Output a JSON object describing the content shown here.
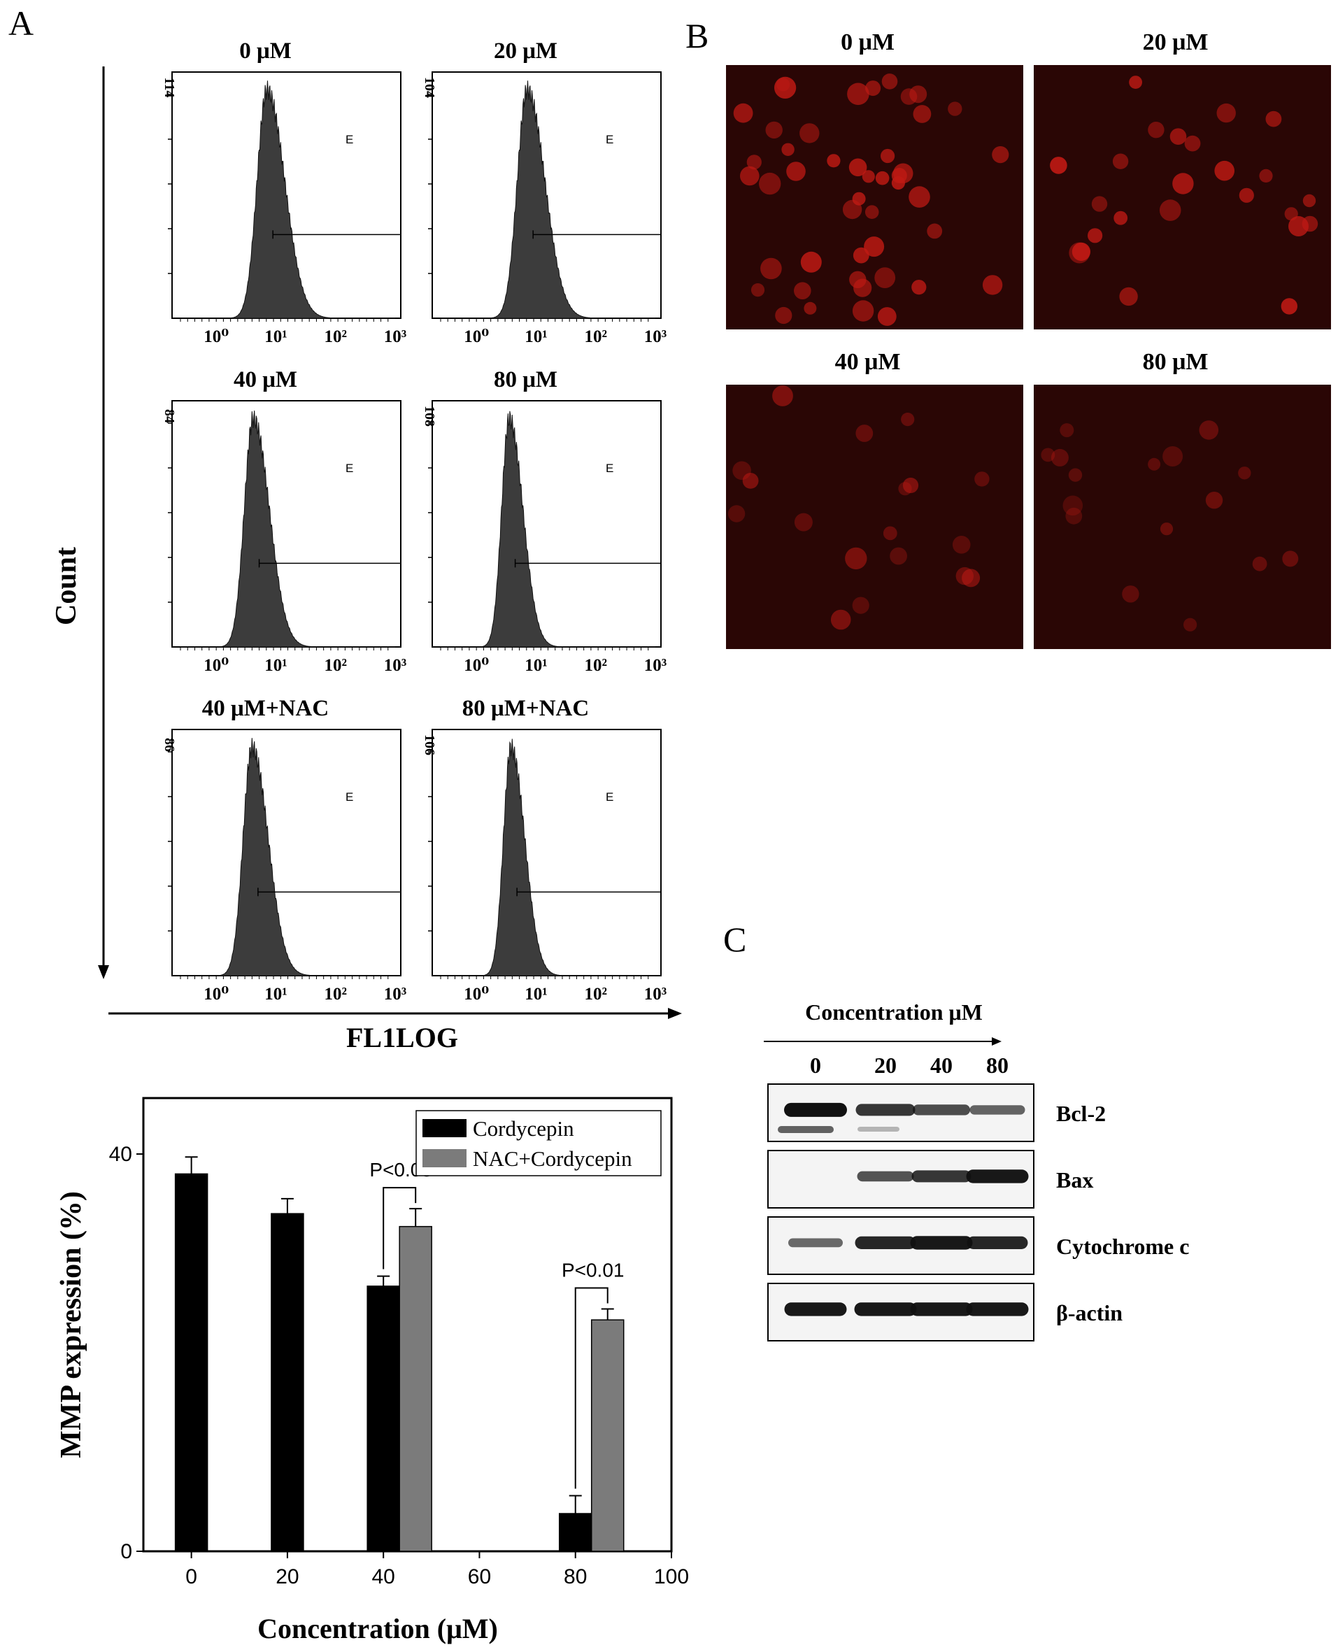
{
  "panels": {
    "A": "A",
    "B": "B",
    "C": "C"
  },
  "flow": {
    "y_axis_label": "Count",
    "x_axis_label": "FL1LOG",
    "gate_label": "E",
    "tick_labels": [
      "10⁰",
      "10¹",
      "10²",
      "10³"
    ],
    "plots": [
      {
        "title": "0 μM",
        "ymax_label": "114",
        "peak_decade": 0.85,
        "width": 0.22,
        "gate_level": 0.5
      },
      {
        "title": "20 μM",
        "ymax_label": "104",
        "peak_decade": 0.85,
        "width": 0.22,
        "gate_level": 0.5
      },
      {
        "title": "40 μM",
        "ymax_label": "84",
        "peak_decade": 0.62,
        "width": 0.2,
        "gate_level": 0.5
      },
      {
        "title": "80 μM",
        "ymax_label": "108",
        "peak_decade": 0.55,
        "width": 0.17,
        "gate_level": 0.5
      },
      {
        "title": "40 μM+NAC",
        "ymax_label": "86",
        "peak_decade": 0.6,
        "width": 0.2,
        "gate_level": 0.5
      },
      {
        "title": "80 μM+NAC",
        "ymax_label": "106",
        "peak_decade": 0.58,
        "width": 0.17,
        "gate_level": 0.5
      }
    ]
  },
  "micrographs": {
    "labels": [
      "0 μM",
      "20 μM",
      "40 μM",
      "80 μM"
    ],
    "background": "#2a0605",
    "cell_color": "#c01a14",
    "cell_counts": [
      46,
      24,
      18,
      16
    ]
  },
  "western": {
    "axis_label": "Concentration μM",
    "lanes": [
      "0",
      "20",
      "40",
      "80"
    ],
    "blots": [
      {
        "name": "Bcl-2",
        "intensities": [
          1.0,
          0.75,
          0.6,
          0.45
        ]
      },
      {
        "name": "Bax",
        "intensities": [
          0.0,
          0.55,
          0.75,
          0.95
        ]
      },
      {
        "name": "Cytochrome c",
        "intensities": [
          0.4,
          0.85,
          0.95,
          0.85
        ]
      },
      {
        "name": "β-actin",
        "intensities": [
          0.95,
          0.95,
          0.95,
          0.95
        ]
      }
    ]
  },
  "chart_data": {
    "type": "bar",
    "ylabel": "MMP expression (%)",
    "xlabel": "Concentration (μM)",
    "xlim": [
      -10,
      100
    ],
    "ylim": [
      0,
      40
    ],
    "xticks": [
      0,
      20,
      40,
      60,
      80,
      100
    ],
    "yticks": [
      0,
      40
    ],
    "legend_position": "top-right",
    "series": [
      {
        "name": "Cordycepin",
        "color": "#000000",
        "points": [
          {
            "x": 0,
            "y": 38,
            "err": 1.7
          },
          {
            "x": 20,
            "y": 34,
            "err": 1.5
          },
          {
            "x": 40,
            "y": 26.7,
            "err": 1.0
          },
          {
            "x": 80,
            "y": 3.8,
            "err": 1.8
          }
        ]
      },
      {
        "name": "NAC+Cordycepin",
        "color": "#7b7b7b",
        "points": [
          {
            "x": 40,
            "y": 32.7,
            "err": 1.8
          },
          {
            "x": 80,
            "y": 23.3,
            "err": 1.1
          }
        ]
      }
    ],
    "annotations": [
      {
        "text": "P<0.05",
        "x": 40
      },
      {
        "text": "P<0.01",
        "x": 80
      }
    ]
  }
}
